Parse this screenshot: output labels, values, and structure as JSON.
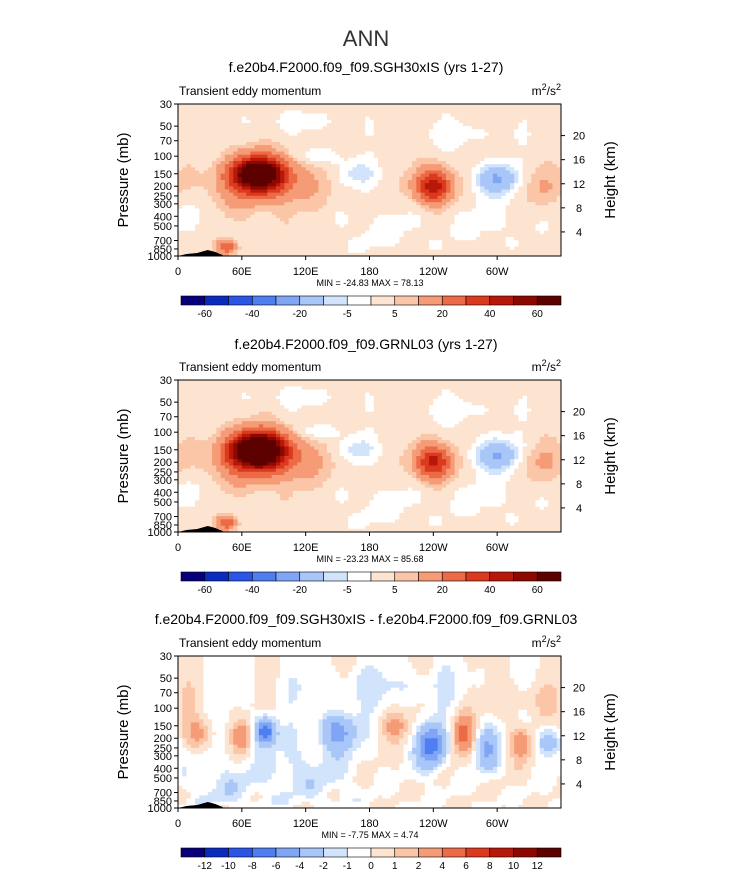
{
  "figure": {
    "title": "ANN"
  },
  "colors": {
    "main_palette": [
      "#08007a",
      "#0a2bc0",
      "#2a55e6",
      "#4f7ef0",
      "#7fa5f4",
      "#a9c6f8",
      "#d2e4fb",
      "#ffffff",
      "#fde4d0",
      "#fbc6a8",
      "#f59b76",
      "#ec6a45",
      "#dc3a1f",
      "#b8180a",
      "#8c0800",
      "#5c0000"
    ],
    "diff_palette": [
      "#08007a",
      "#0a2bc0",
      "#2a55e6",
      "#4f7ef0",
      "#7fa5f4",
      "#a9c6f8",
      "#d2e4fb",
      "#ffffff",
      "#fde4d0",
      "#fbc6a8",
      "#f59b76",
      "#ec6a45",
      "#dc3a1f",
      "#b8180a",
      "#8c0800",
      "#5c0000"
    ]
  },
  "chart_data": [
    {
      "type": "heatmap",
      "title": "f.e20b4.F2000.f09_f09.SGH30xIS (yrs 1-27)",
      "left_label": "Transient eddy momentum",
      "units": "m²/s²",
      "units_base": "m",
      "units_sup1": "2",
      "units_mid": "/s",
      "units_sup2": "2",
      "ylabel": "Pressure (mb)",
      "ylabel_right": "Height (km)",
      "x_ticks": [
        "0",
        "60E",
        "120E",
        "180",
        "120W",
        "60W"
      ],
      "x_tick_values": [
        0,
        60,
        120,
        180,
        240,
        300
      ],
      "xlim": [
        0,
        360
      ],
      "p_ticks": [
        "30",
        "50",
        "70",
        "100",
        "150",
        "200",
        "250",
        "300",
        "400",
        "500",
        "700",
        "850",
        "1000"
      ],
      "p_tick_values": [
        30,
        50,
        70,
        100,
        150,
        200,
        250,
        300,
        400,
        500,
        700,
        850,
        1000
      ],
      "h_ticks": [
        "20",
        "16",
        "12",
        "8",
        "4"
      ],
      "h_tick_values": [
        20,
        16,
        12,
        8,
        4
      ],
      "stats": "MIN = -24.83   MAX =  78.13",
      "min": -24.83,
      "max": 78.13,
      "contour_levels": [
        -60,
        -50,
        -40,
        -30,
        -20,
        -10,
        -5,
        0,
        5,
        10,
        20,
        30,
        40,
        50,
        60
      ],
      "legend_labels": [
        "-60",
        "-40",
        "-20",
        "-5",
        "5",
        "20",
        "40",
        "60"
      ],
      "legend_label_slots": [
        1,
        3,
        5,
        7,
        9,
        11,
        13,
        15
      ],
      "base": 2.5,
      "noise": 2.0,
      "features": [
        {
          "lon": 75,
          "p": 150,
          "val": 78,
          "w": 18,
          "h": 0.28
        },
        {
          "lon": 95,
          "p": 200,
          "val": 12,
          "w": 30,
          "h": 0.35
        },
        {
          "lon": 50,
          "p": 250,
          "val": 6,
          "w": 20,
          "h": 0.4
        },
        {
          "lon": 240,
          "p": 200,
          "val": 45,
          "w": 12,
          "h": 0.28
        },
        {
          "lon": 300,
          "p": 170,
          "val": -24,
          "w": 14,
          "h": 0.25
        },
        {
          "lon": 168,
          "p": 150,
          "val": -10,
          "w": 14,
          "h": 0.22
        },
        {
          "lon": 133,
          "p": 100,
          "val": -8,
          "w": 14,
          "h": 0.12
        },
        {
          "lon": 45,
          "p": 800,
          "val": 28,
          "w": 6,
          "h": 0.12
        },
        {
          "lon": 190,
          "p": 550,
          "val": -4,
          "w": 30,
          "h": 0.4
        },
        {
          "lon": 285,
          "p": 450,
          "val": -4,
          "w": 30,
          "h": 0.4
        },
        {
          "lon": 20,
          "p": 400,
          "val": -4,
          "w": 18,
          "h": 0.35
        },
        {
          "lon": 340,
          "p": 200,
          "val": 7,
          "w": 18,
          "h": 0.3
        },
        {
          "lon": 260,
          "p": 60,
          "val": -4,
          "w": 40,
          "h": 0.25
        },
        {
          "lon": 110,
          "p": 45,
          "val": -3.5,
          "w": 40,
          "h": 0.2
        }
      ]
    },
    {
      "type": "heatmap",
      "title": "f.e20b4.F2000.f09_f09.GRNL03 (yrs 1-27)",
      "left_label": "Transient eddy momentum",
      "units": "m²/s²",
      "units_base": "m",
      "units_sup1": "2",
      "units_mid": "/s",
      "units_sup2": "2",
      "ylabel": "Pressure (mb)",
      "ylabel_right": "Height (km)",
      "x_ticks": [
        "0",
        "60E",
        "120E",
        "180",
        "120W",
        "60W"
      ],
      "x_tick_values": [
        0,
        60,
        120,
        180,
        240,
        300
      ],
      "xlim": [
        0,
        360
      ],
      "p_ticks": [
        "30",
        "50",
        "70",
        "100",
        "150",
        "200",
        "250",
        "300",
        "400",
        "500",
        "700",
        "850",
        "1000"
      ],
      "p_tick_values": [
        30,
        50,
        70,
        100,
        150,
        200,
        250,
        300,
        400,
        500,
        700,
        850,
        1000
      ],
      "h_ticks": [
        "20",
        "16",
        "12",
        "8",
        "4"
      ],
      "h_tick_values": [
        20,
        16,
        12,
        8,
        4
      ],
      "stats": "MIN = -23.23   MAX =  85.68",
      "min": -23.23,
      "max": 85.68,
      "contour_levels": [
        -60,
        -50,
        -40,
        -30,
        -20,
        -10,
        -5,
        0,
        5,
        10,
        20,
        30,
        40,
        50,
        60
      ],
      "legend_labels": [
        "-60",
        "-40",
        "-20",
        "-5",
        "5",
        "20",
        "40",
        "60"
      ],
      "legend_label_slots": [
        1,
        3,
        5,
        7,
        9,
        11,
        13,
        15
      ],
      "base": 2.5,
      "noise": 2.0,
      "features": [
        {
          "lon": 75,
          "p": 150,
          "val": 85,
          "w": 19,
          "h": 0.3
        },
        {
          "lon": 95,
          "p": 200,
          "val": 14,
          "w": 32,
          "h": 0.35
        },
        {
          "lon": 50,
          "p": 250,
          "val": 6,
          "w": 20,
          "h": 0.4
        },
        {
          "lon": 240,
          "p": 200,
          "val": 42,
          "w": 12,
          "h": 0.28
        },
        {
          "lon": 300,
          "p": 170,
          "val": -23,
          "w": 15,
          "h": 0.26
        },
        {
          "lon": 168,
          "p": 150,
          "val": -10,
          "w": 14,
          "h": 0.22
        },
        {
          "lon": 133,
          "p": 100,
          "val": -8,
          "w": 14,
          "h": 0.12
        },
        {
          "lon": 45,
          "p": 800,
          "val": 28,
          "w": 6,
          "h": 0.12
        },
        {
          "lon": 190,
          "p": 550,
          "val": -4,
          "w": 30,
          "h": 0.4
        },
        {
          "lon": 285,
          "p": 450,
          "val": -4,
          "w": 30,
          "h": 0.4
        },
        {
          "lon": 20,
          "p": 400,
          "val": -4,
          "w": 18,
          "h": 0.35
        },
        {
          "lon": 340,
          "p": 200,
          "val": 8,
          "w": 18,
          "h": 0.3
        },
        {
          "lon": 260,
          "p": 60,
          "val": -4,
          "w": 40,
          "h": 0.25
        },
        {
          "lon": 110,
          "p": 45,
          "val": -3.5,
          "w": 40,
          "h": 0.2
        }
      ]
    },
    {
      "type": "heatmap",
      "title": "f.e20b4.F2000.f09_f09.SGH30xIS - f.e20b4.F2000.f09_f09.GRNL03",
      "left_label": "Transient eddy momentum",
      "units": "m²/s²",
      "units_base": "m",
      "units_sup1": "2",
      "units_mid": "/s",
      "units_sup2": "2",
      "ylabel": "Pressure (mb)",
      "ylabel_right": "Height (km)",
      "x_ticks": [
        "0",
        "60E",
        "120E",
        "180",
        "120W",
        "60W"
      ],
      "x_tick_values": [
        0,
        60,
        120,
        180,
        240,
        300
      ],
      "xlim": [
        0,
        360
      ],
      "p_ticks": [
        "30",
        "50",
        "70",
        "100",
        "150",
        "200",
        "250",
        "300",
        "400",
        "500",
        "700",
        "850",
        "1000"
      ],
      "p_tick_values": [
        30,
        50,
        70,
        100,
        150,
        200,
        250,
        300,
        400,
        500,
        700,
        850,
        1000
      ],
      "h_ticks": [
        "20",
        "16",
        "12",
        "8",
        "4"
      ],
      "h_tick_values": [
        20,
        16,
        12,
        8,
        4
      ],
      "stats": "MIN =  -7.75   MAX =   4.74",
      "min": -7.75,
      "max": 4.74,
      "contour_levels": [
        -12,
        -10,
        -8,
        -6,
        -4,
        -2,
        -1,
        0,
        1,
        2,
        4,
        6,
        8,
        10,
        12
      ],
      "legend_labels": [
        "-12",
        "-10",
        "-8",
        "-6",
        "-4",
        "-2",
        "-1",
        "0",
        "1",
        "2",
        "4",
        "6",
        "8",
        "10",
        "12"
      ],
      "legend_label_slots": [
        1,
        2,
        3,
        4,
        5,
        6,
        7,
        8,
        9,
        10,
        11,
        12,
        13,
        14,
        15
      ],
      "base": 0,
      "noise": 0.9,
      "features": [
        {
          "lon": 82,
          "p": 170,
          "val": -7.5,
          "w": 7,
          "h": 0.22
        },
        {
          "lon": 60,
          "p": 190,
          "val": 3.5,
          "w": 6,
          "h": 0.22
        },
        {
          "lon": 20,
          "p": 180,
          "val": 2.5,
          "w": 10,
          "h": 0.25
        },
        {
          "lon": 150,
          "p": 170,
          "val": -5,
          "w": 12,
          "h": 0.3
        },
        {
          "lon": 205,
          "p": 150,
          "val": 2,
          "w": 10,
          "h": 0.2
        },
        {
          "lon": 238,
          "p": 240,
          "val": -7,
          "w": 9,
          "h": 0.35
        },
        {
          "lon": 268,
          "p": 180,
          "val": 4.5,
          "w": 7,
          "h": 0.3
        },
        {
          "lon": 290,
          "p": 250,
          "val": -4,
          "w": 8,
          "h": 0.35
        },
        {
          "lon": 322,
          "p": 220,
          "val": 3.5,
          "w": 7,
          "h": 0.25
        },
        {
          "lon": 348,
          "p": 220,
          "val": -4.5,
          "w": 7,
          "h": 0.22
        },
        {
          "lon": 120,
          "p": 450,
          "val": -1.5,
          "w": 30,
          "h": 0.5
        },
        {
          "lon": 190,
          "p": 60,
          "val": -1.2,
          "w": 60,
          "h": 0.3
        },
        {
          "lon": 330,
          "p": 80,
          "val": 1.2,
          "w": 25,
          "h": 0.3
        },
        {
          "lon": 45,
          "p": 600,
          "val": -1.5,
          "w": 20,
          "h": 0.4
        }
      ]
    }
  ]
}
